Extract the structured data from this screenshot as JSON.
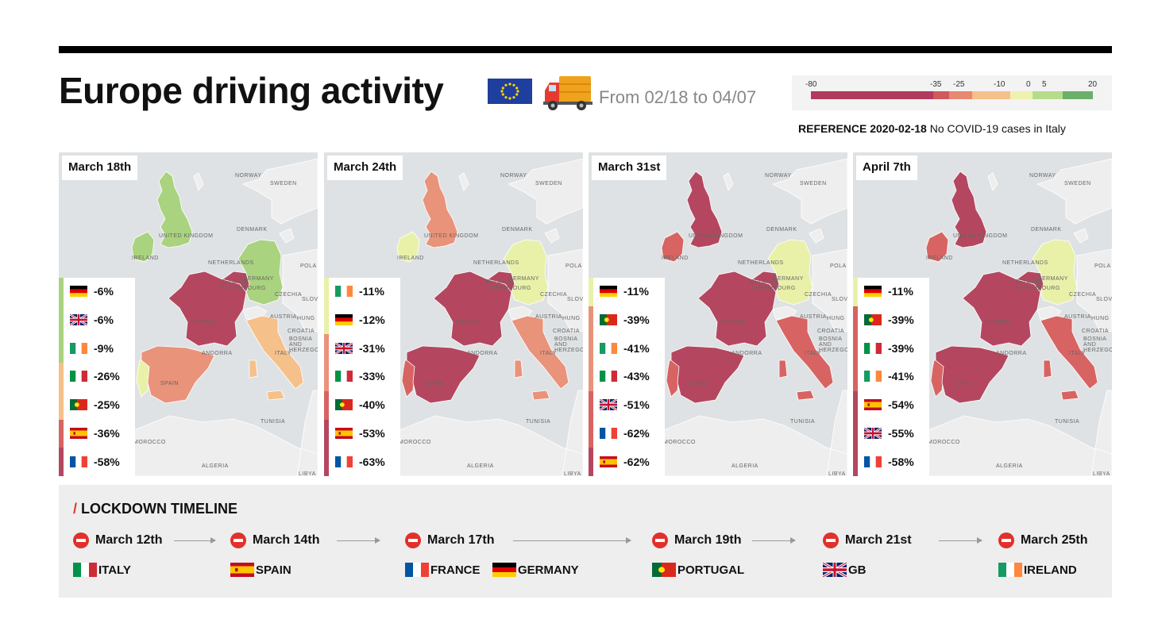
{
  "header": {
    "title": "Europe driving activity",
    "date_range": "From 02/18 to 04/07"
  },
  "scale": {
    "ticks": [
      "-80",
      "-35",
      "-25",
      "-10",
      "0",
      "5",
      "20"
    ],
    "colors": [
      "#b13a5e",
      "#d05a5a",
      "#e88870",
      "#f5c08a",
      "#eef2b0",
      "#b6dc8a",
      "#6aaf6a"
    ]
  },
  "reference": {
    "label": "REFERENCE 2020-02-18",
    "note": "No COVID-19 cases in Italy"
  },
  "colors": {
    "dark": "#b4475f",
    "red": "#d76462",
    "salmon": "#e9937a",
    "orange": "#f5c08a",
    "yellow": "#e9f1a9",
    "lightgreen": "#c9e39a",
    "green": "#a9d37e",
    "land": "#eeeeee",
    "sea": "#dfe2e4"
  },
  "panels": [
    {
      "date": "March 18th",
      "legend": [
        {
          "flag": "de",
          "value": "-6%"
        },
        {
          "flag": "gb",
          "value": "-6%"
        },
        {
          "flag": "ie",
          "value": "-9%"
        },
        {
          "flag": "it",
          "value": "-26%"
        },
        {
          "flag": "pt",
          "value": "-25%"
        },
        {
          "flag": "es",
          "value": "-36%"
        },
        {
          "flag": "fr",
          "value": "-58%"
        }
      ],
      "fills": {
        "gb": "green",
        "ie": "green",
        "fr": "dark",
        "es": "salmon",
        "pt": "yellow",
        "it": "orange",
        "de": "green",
        "benelux": "dark",
        "ch": "land"
      }
    },
    {
      "date": "March 24th",
      "legend": [
        {
          "flag": "ie",
          "value": "-11%"
        },
        {
          "flag": "de",
          "value": "-12%"
        },
        {
          "flag": "gb",
          "value": "-31%"
        },
        {
          "flag": "it",
          "value": "-33%"
        },
        {
          "flag": "pt",
          "value": "-40%"
        },
        {
          "flag": "es",
          "value": "-53%"
        },
        {
          "flag": "fr",
          "value": "-63%"
        }
      ],
      "fills": {
        "gb": "salmon",
        "ie": "yellow",
        "fr": "dark",
        "es": "dark",
        "pt": "red",
        "it": "salmon",
        "de": "yellow",
        "benelux": "dark",
        "ch": "land"
      }
    },
    {
      "date": "March 31st",
      "legend": [
        {
          "flag": "de",
          "value": "-11%"
        },
        {
          "flag": "pt",
          "value": "-39%"
        },
        {
          "flag": "ie",
          "value": "-41%"
        },
        {
          "flag": "it",
          "value": "-43%"
        },
        {
          "flag": "gb",
          "value": "-51%"
        },
        {
          "flag": "fr",
          "value": "-62%"
        },
        {
          "flag": "es",
          "value": "-62%"
        }
      ],
      "fills": {
        "gb": "dark",
        "ie": "red",
        "fr": "dark",
        "es": "dark",
        "pt": "red",
        "it": "red",
        "de": "yellow",
        "benelux": "dark",
        "ch": "land"
      }
    },
    {
      "date": "April 7th",
      "legend": [
        {
          "flag": "de",
          "value": "-11%"
        },
        {
          "flag": "pt",
          "value": "-39%"
        },
        {
          "flag": "it",
          "value": "-39%"
        },
        {
          "flag": "ie",
          "value": "-41%"
        },
        {
          "flag": "es",
          "value": "-54%"
        },
        {
          "flag": "gb",
          "value": "-55%"
        },
        {
          "flag": "fr",
          "value": "-58%"
        }
      ],
      "fills": {
        "gb": "dark",
        "ie": "red",
        "fr": "dark",
        "es": "dark",
        "pt": "red",
        "it": "red",
        "de": "yellow",
        "benelux": "dark",
        "ch": "land"
      }
    }
  ],
  "map_labels": [
    "NORWAY",
    "SWEDEN",
    "DENMARK",
    "UNITED KINGDOM",
    "IRELAND",
    "NETHERLANDS",
    "POLA",
    "GERMANY",
    "BELGIUM",
    "LUXEMBOURG",
    "CZECHIA",
    "SLOV",
    "FRANCE",
    "AUSTRIA",
    "HUNG",
    "CROATIA",
    "BOSNIA AND HERZEGOVI",
    "ANDORRA",
    "SPAIN",
    "ITALY",
    "TUNISIA",
    "MOROCCO",
    "ALGERIA",
    "LIBYA"
  ],
  "timeline": {
    "title": "LOCKDOWN TIMELINE",
    "events": [
      {
        "date": "March 12th",
        "countries": [
          {
            "flag": "it",
            "name": "ITALY"
          }
        ]
      },
      {
        "date": "March 14th",
        "countries": [
          {
            "flag": "es",
            "name": "SPAIN"
          }
        ]
      },
      {
        "date": "March 17th",
        "countries": [
          {
            "flag": "fr",
            "name": "FRANCE"
          },
          {
            "flag": "de",
            "name": "GERMANY"
          }
        ]
      },
      {
        "date": "March 19th",
        "countries": [
          {
            "flag": "pt",
            "name": "PORTUGAL"
          }
        ]
      },
      {
        "date": "March 21st",
        "countries": [
          {
            "flag": "gb",
            "name": "GB"
          }
        ]
      },
      {
        "date": "March 25th",
        "countries": [
          {
            "flag": "ie",
            "name": "IRELAND"
          }
        ]
      }
    ]
  }
}
